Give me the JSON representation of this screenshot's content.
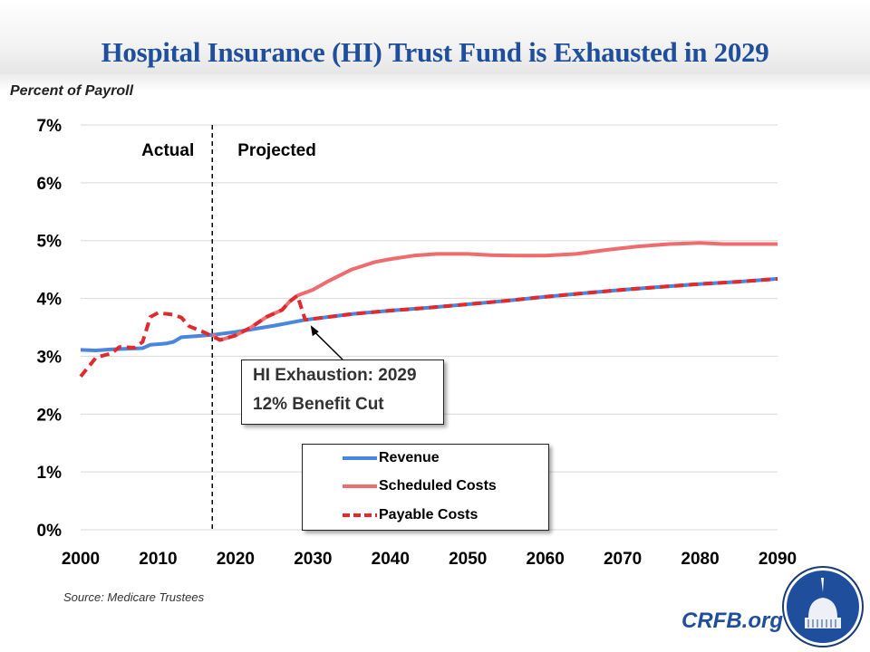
{
  "header": {
    "title": "Hospital Insurance (HI) Trust Fund is Exhausted in 2029",
    "y_axis_label": "Percent of Payroll"
  },
  "footer": {
    "source": "Source: Medicare Trustees",
    "brand": "CRFB.org",
    "logo_icon": "capitol-dome-logo-icon"
  },
  "annotation": {
    "line1": "HI Exhaustion: 2029",
    "line2": "12% Benefit Cut"
  },
  "colors": {
    "title": "#1f4e9c",
    "revenue": "#4a86e0",
    "scheduled": "#ee6b6e",
    "payable": "#e02a2f",
    "grid": "#d9d9d9"
  },
  "chart_data": {
    "type": "line",
    "title": "Hospital Insurance (HI) Trust Fund is Exhausted in 2029",
    "xlabel": "",
    "ylabel": "Percent of Payroll",
    "xlim": [
      2000,
      2090
    ],
    "ylim": [
      0,
      7
    ],
    "x_ticks": [
      "2000",
      "2010",
      "2020",
      "2030",
      "2040",
      "2050",
      "2060",
      "2070",
      "2080",
      "2090"
    ],
    "y_ticks": [
      "0%",
      "1%",
      "2%",
      "3%",
      "4%",
      "5%",
      "6%",
      "7%"
    ],
    "grid": true,
    "legend_position": "bottom-center",
    "divider": {
      "year": 2017,
      "left_label": "Actual",
      "right_label": "Projected"
    },
    "series": [
      {
        "name": "Revenue",
        "style": "solid",
        "points": [
          [
            2000,
            3.11
          ],
          [
            2002,
            3.1
          ],
          [
            2004,
            3.12
          ],
          [
            2006,
            3.13
          ],
          [
            2008,
            3.14
          ],
          [
            2009,
            3.2
          ],
          [
            2011,
            3.22
          ],
          [
            2012,
            3.25
          ],
          [
            2013,
            3.33
          ],
          [
            2015,
            3.35
          ],
          [
            2017,
            3.37
          ],
          [
            2020,
            3.42
          ],
          [
            2025,
            3.53
          ],
          [
            2029,
            3.63
          ],
          [
            2035,
            3.73
          ],
          [
            2040,
            3.79
          ],
          [
            2045,
            3.84
          ],
          [
            2050,
            3.9
          ],
          [
            2055,
            3.96
          ],
          [
            2060,
            4.03
          ],
          [
            2065,
            4.09
          ],
          [
            2070,
            4.15
          ],
          [
            2075,
            4.2
          ],
          [
            2080,
            4.25
          ],
          [
            2085,
            4.29
          ],
          [
            2090,
            4.34
          ]
        ]
      },
      {
        "name": "Scheduled Costs",
        "style": "solid",
        "points": [
          [
            2017,
            3.37
          ],
          [
            2018,
            3.28
          ],
          [
            2020,
            3.36
          ],
          [
            2022,
            3.5
          ],
          [
            2024,
            3.68
          ],
          [
            2026,
            3.8
          ],
          [
            2027,
            3.95
          ],
          [
            2028,
            4.05
          ],
          [
            2030,
            4.15
          ],
          [
            2032,
            4.3
          ],
          [
            2035,
            4.5
          ],
          [
            2038,
            4.63
          ],
          [
            2040,
            4.68
          ],
          [
            2043,
            4.74
          ],
          [
            2046,
            4.77
          ],
          [
            2050,
            4.77
          ],
          [
            2053,
            4.75
          ],
          [
            2056,
            4.74
          ],
          [
            2060,
            4.74
          ],
          [
            2064,
            4.77
          ],
          [
            2068,
            4.84
          ],
          [
            2072,
            4.9
          ],
          [
            2076,
            4.94
          ],
          [
            2080,
            4.96
          ],
          [
            2083,
            4.94
          ],
          [
            2090,
            4.94
          ]
        ]
      },
      {
        "name": "Payable Costs",
        "style": "dashed",
        "points": [
          [
            2000,
            2.65
          ],
          [
            2002,
            2.98
          ],
          [
            2004,
            3.05
          ],
          [
            2005,
            3.16
          ],
          [
            2007,
            3.15
          ],
          [
            2008,
            3.25
          ],
          [
            2009,
            3.68
          ],
          [
            2010,
            3.75
          ],
          [
            2012,
            3.72
          ],
          [
            2013,
            3.67
          ],
          [
            2014,
            3.52
          ],
          [
            2016,
            3.41
          ],
          [
            2018,
            3.28
          ],
          [
            2020,
            3.36
          ],
          [
            2022,
            3.5
          ],
          [
            2024,
            3.68
          ],
          [
            2026,
            3.8
          ],
          [
            2027,
            3.95
          ],
          [
            2028,
            4.05
          ],
          [
            2029,
            3.63
          ],
          [
            2035,
            3.73
          ],
          [
            2040,
            3.79
          ],
          [
            2045,
            3.84
          ],
          [
            2050,
            3.9
          ],
          [
            2055,
            3.96
          ],
          [
            2060,
            4.03
          ],
          [
            2065,
            4.09
          ],
          [
            2070,
            4.15
          ],
          [
            2075,
            4.2
          ],
          [
            2080,
            4.25
          ],
          [
            2085,
            4.29
          ],
          [
            2090,
            4.34
          ]
        ]
      }
    ],
    "annotations": [
      {
        "text": "HI Exhaustion: 2029 / 12% Benefit Cut",
        "points_to": [
          2029,
          3.63
        ]
      }
    ]
  }
}
